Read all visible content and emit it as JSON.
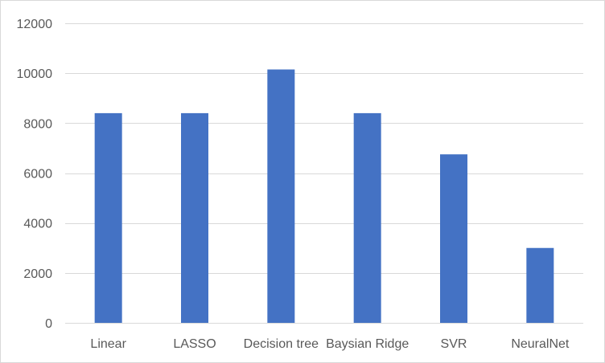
{
  "chart_data": {
    "type": "bar",
    "title": "",
    "xlabel": "",
    "ylabel": "",
    "categories": [
      "Linear",
      "LASSO",
      "Decision tree",
      "Baysian Ridge",
      "SVR",
      "NeuralNet"
    ],
    "values": [
      8400,
      8400,
      10150,
      8400,
      6750,
      3000
    ],
    "ylim": [
      0,
      12000
    ],
    "yticks": [
      0,
      2000,
      4000,
      6000,
      8000,
      10000,
      12000
    ],
    "grid": true,
    "legend": "none",
    "bar_color": "#4472C4",
    "grid_color": "#D9D9D9",
    "text_color": "#595959"
  }
}
